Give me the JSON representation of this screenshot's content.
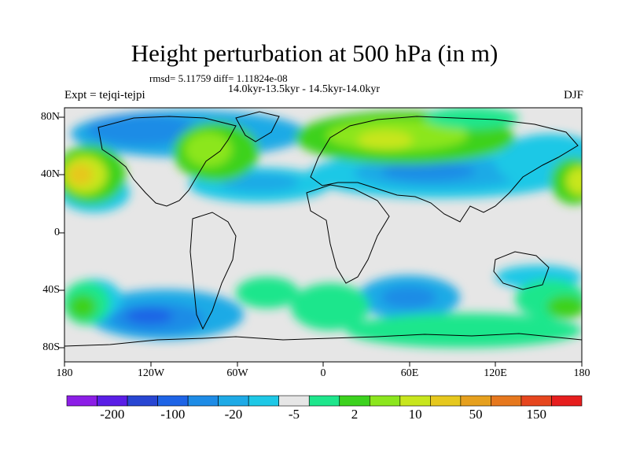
{
  "title": "Height perturbation at 500 hPa (in m)",
  "stats": "rmsd= 5.11759  diff= 1.11824e-08",
  "period": "14.0kyr-13.5kyr - 14.5kyr-14.0kyr",
  "expt": "Expt = tejqi-tejpi",
  "season": "DJF",
  "lat_labels": [
    "80N",
    "40N",
    "0",
    "40S",
    "80S"
  ],
  "lon_labels": [
    "180",
    "120W",
    "60W",
    "0",
    "60E",
    "120E",
    "180"
  ],
  "colorbar": {
    "colors": [
      "#8c1ee6",
      "#5a1ee6",
      "#2846d2",
      "#1e64e6",
      "#1e8ce6",
      "#1eaae6",
      "#1ec8e6",
      "#e6e6e6",
      "#1ee68c",
      "#3cd21e",
      "#8ce61e",
      "#c8e61e",
      "#e6c81e",
      "#e6a01e",
      "#e6781e",
      "#e6461e",
      "#e61e1e"
    ],
    "labels": [
      "-200",
      "-100",
      "-20",
      "-5",
      "2",
      "10",
      "50",
      "150"
    ]
  }
}
